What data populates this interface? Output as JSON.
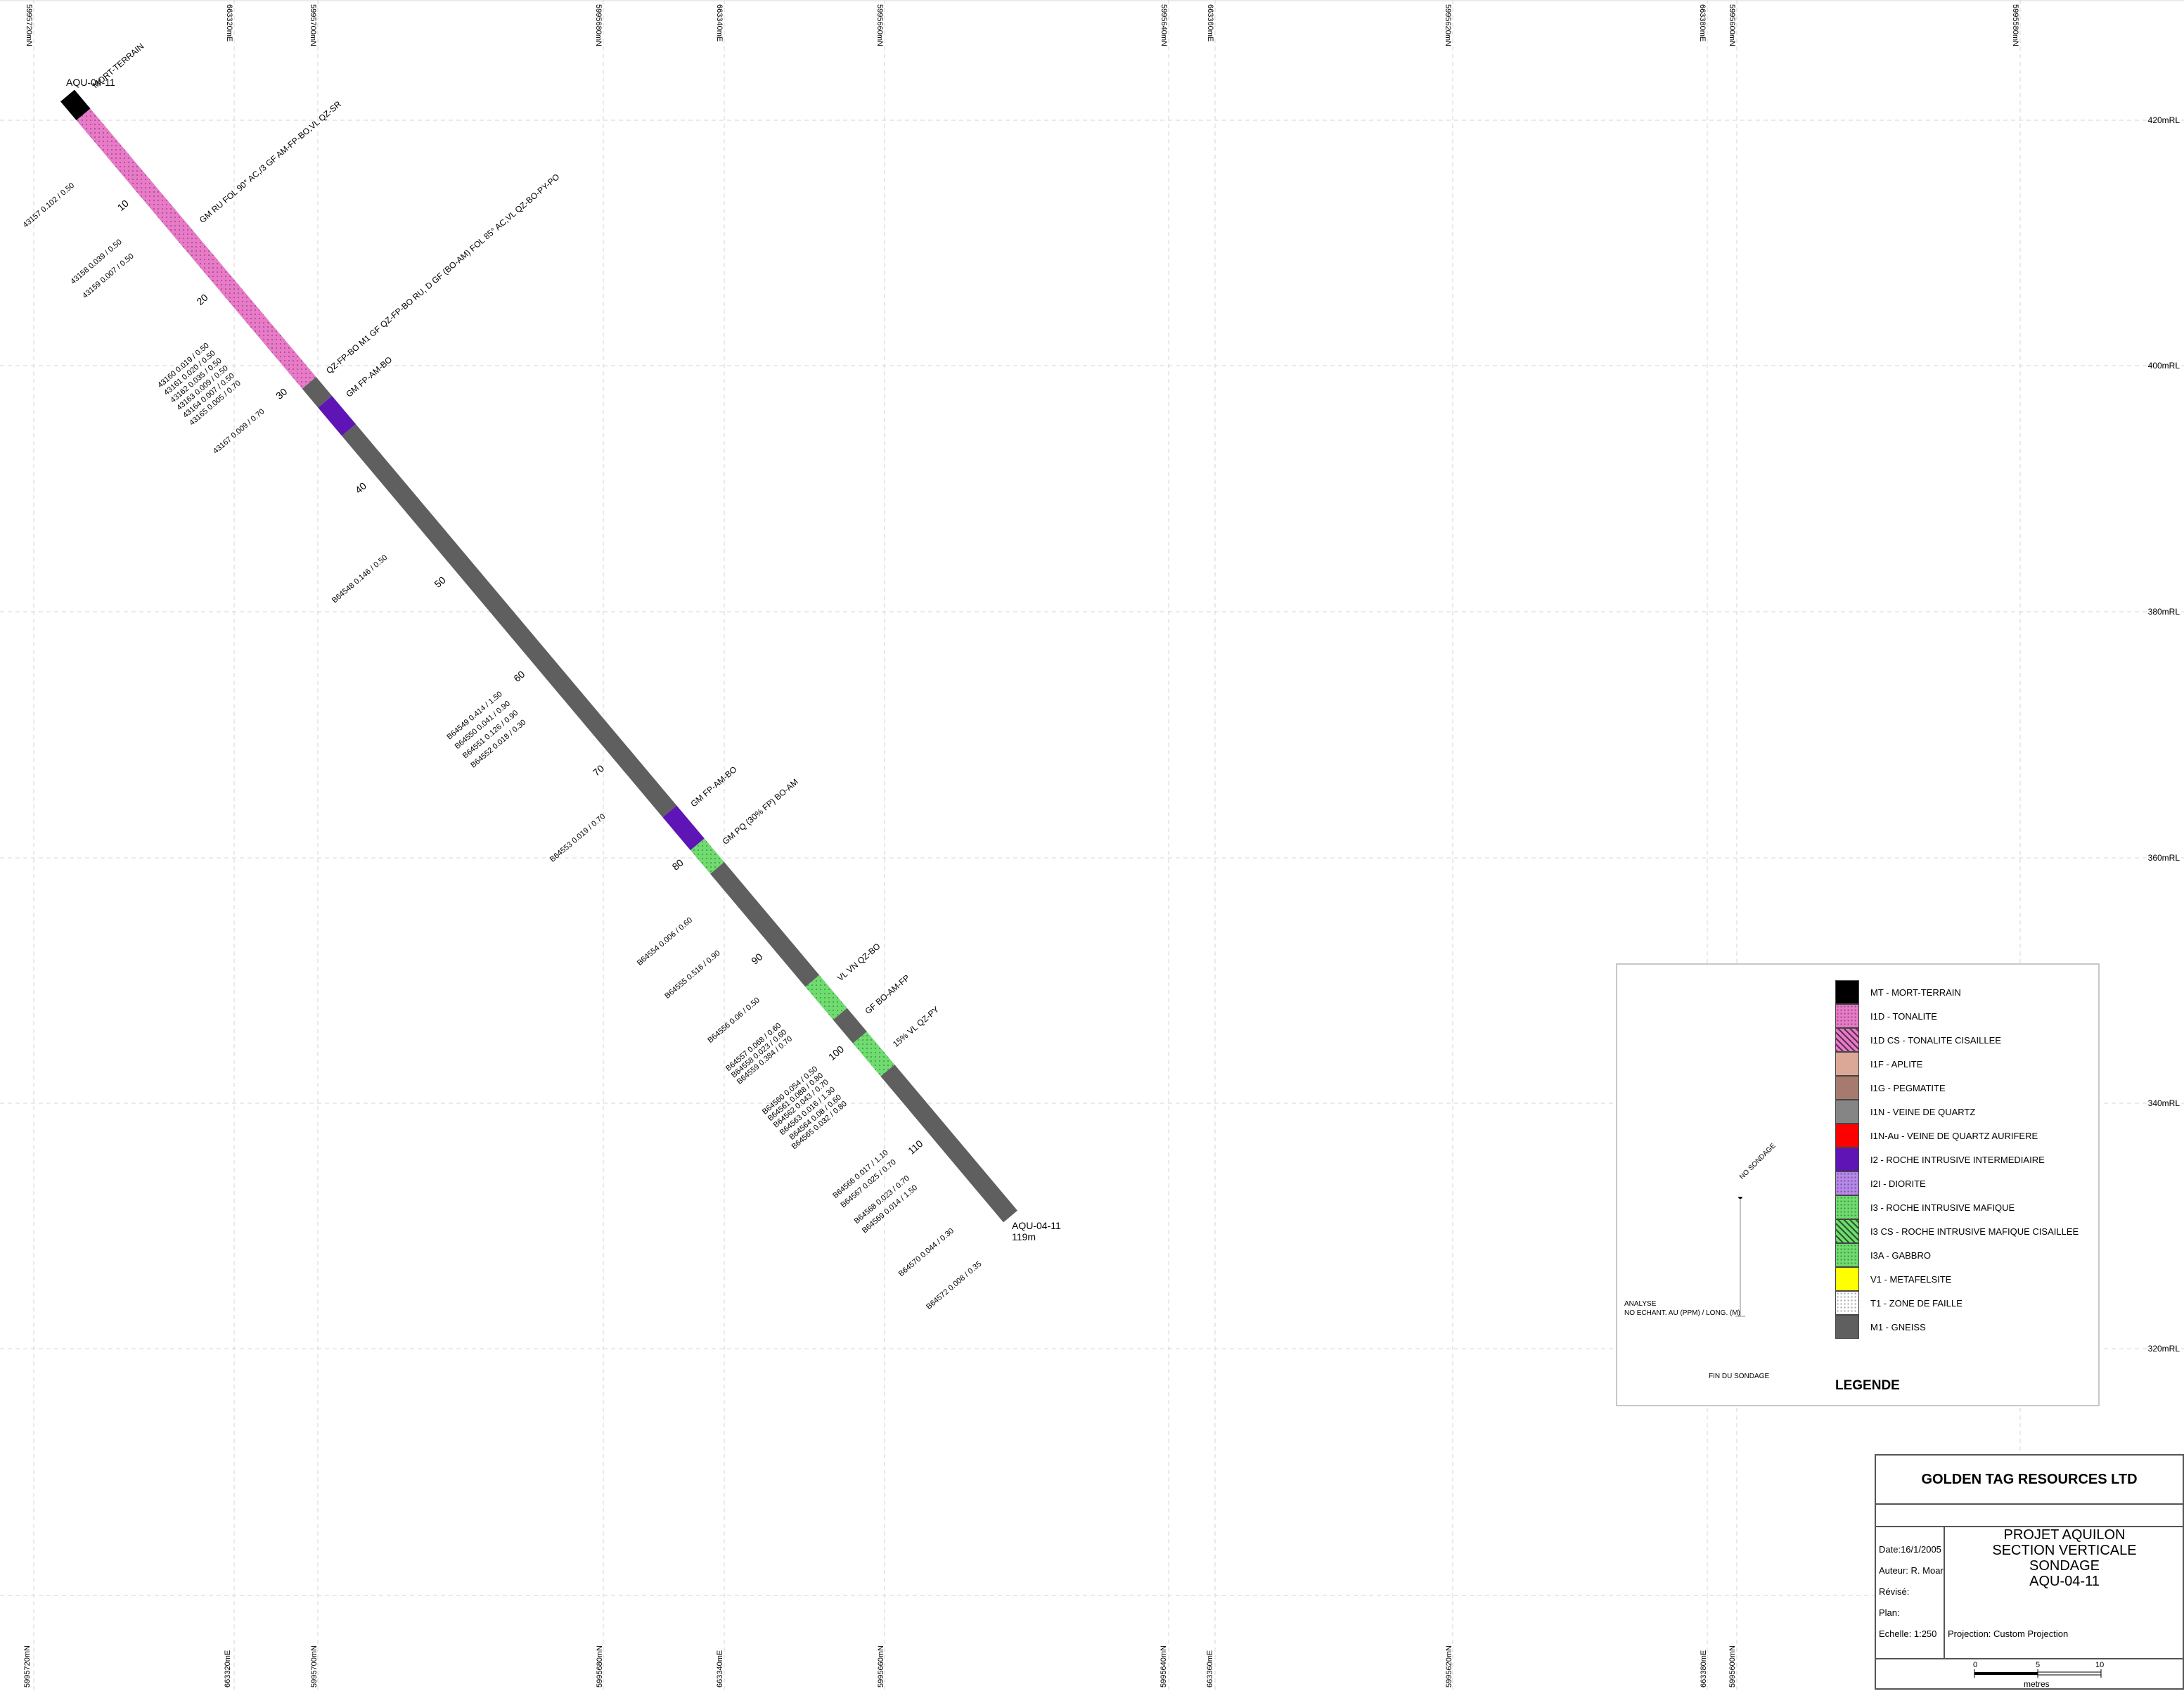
{
  "grid": {
    "top_labels": [
      "5995720mN",
      "663320mE",
      "5995700mN",
      "5995680mN",
      "663340mE",
      "5995660mN",
      "5995640mN",
      "663360mE",
      "5995620mN",
      "663380mE",
      "5995600mN",
      "5995580mN"
    ],
    "bottom_labels": [
      "5995720mN",
      "663320mE",
      "5995700mN",
      "5995680mN",
      "663340mE",
      "5995660mN",
      "5995640mN",
      "663360mE",
      "5995620mN",
      "663380mE",
      "5995600mN"
    ],
    "elevation_labels": [
      "420mRL",
      "400mRL",
      "380mRL",
      "360mRL",
      "340mRL",
      "320mRL"
    ]
  },
  "hole": {
    "name": "AQU-04-11",
    "end_name": "AQU-04-11",
    "end_depth": "119m",
    "collar_label": "MORT-TERRAIN",
    "depth_ticks": [
      "10",
      "20",
      "30",
      "40",
      "50",
      "60",
      "70",
      "80",
      "90",
      "100",
      "110"
    ],
    "segments": [
      {
        "from": 0,
        "to": 2,
        "unit": "MT"
      },
      {
        "from": 2,
        "to": 30.5,
        "unit": "I1D"
      },
      {
        "from": 30.5,
        "to": 32.5,
        "unit": "M1"
      },
      {
        "from": 32.5,
        "to": 35.5,
        "unit": "I2"
      },
      {
        "from": 35.5,
        "to": 76,
        "unit": "M1"
      },
      {
        "from": 76,
        "to": 79.5,
        "unit": "I2"
      },
      {
        "from": 79.5,
        "to": 82,
        "unit": "I3"
      },
      {
        "from": 82,
        "to": 94,
        "unit": "M1"
      },
      {
        "from": 94,
        "to": 97.5,
        "unit": "I3"
      },
      {
        "from": 97.5,
        "to": 100,
        "unit": "M1"
      },
      {
        "from": 100,
        "to": 103.5,
        "unit": "I3"
      },
      {
        "from": 103.5,
        "to": 119,
        "unit": "M1"
      }
    ],
    "descriptions": [
      {
        "depth": 15,
        "text": "GM RU FOL 90° AC,/3 GF AM-FP-BO,VL QZ-SR"
      },
      {
        "depth": 31,
        "text": "QZ-FP-BO M1 GF QZ-FP-BO RU, D GF (BO-AM) FOL 85° AC,VL QZ-BO-PY-PO"
      },
      {
        "depth": 33.5,
        "text": "GM FP-AM-BO"
      },
      {
        "depth": 77,
        "text": "GM FP-AM-BO"
      },
      {
        "depth": 81,
        "text": "GM PQ (30% FP) BO-AM"
      },
      {
        "depth": 95.5,
        "text": "VL VN QZ-BO"
      },
      {
        "depth": 99,
        "text": "GF BO-AM-FP"
      },
      {
        "depth": 102.5,
        "text": "15% VL QZ-PY"
      }
    ],
    "assays": [
      {
        "depth": 6,
        "text": "43157  0.102 / 0.50"
      },
      {
        "depth": 12,
        "text": "43158  0.039 / 0.50"
      },
      {
        "depth": 13.5,
        "text": "43159  0.007 / 0.50"
      },
      {
        "depth": 23,
        "text": "43160  0.019 / 0.50"
      },
      {
        "depth": 23.8,
        "text": "43161  0.020 / 0.50"
      },
      {
        "depth": 24.6,
        "text": "43162  0.035 / 0.50"
      },
      {
        "depth": 25.4,
        "text": "43163  0.009 / 0.50"
      },
      {
        "depth": 26.2,
        "text": "43164  0.007 / 0.50"
      },
      {
        "depth": 27,
        "text": "43165  0.005 / 0.70"
      },
      {
        "depth": 30,
        "text": "43167  0.009 / 0.70"
      },
      {
        "depth": 45.5,
        "text": "B64548  0.146 / 0.50"
      },
      {
        "depth": 60,
        "text": "B64549  0.414 / 1.50"
      },
      {
        "depth": 61,
        "text": "B64550  0.041 / 0.90"
      },
      {
        "depth": 62,
        "text": "B64551  0.126 / 0.90"
      },
      {
        "depth": 63,
        "text": "B64552  0.018 / 0.30"
      },
      {
        "depth": 73,
        "text": "B64553  0.019 / 0.70"
      },
      {
        "depth": 84,
        "text": "B64554  0.006 / 0.60"
      },
      {
        "depth": 87.5,
        "text": "B64555  0.516 / 0.90"
      },
      {
        "depth": 92.5,
        "text": "B64556  0.06 / 0.50"
      },
      {
        "depth": 95.2,
        "text": "B64557  0.068 / 0.60"
      },
      {
        "depth": 95.9,
        "text": "B64558  0.023 / 0.60"
      },
      {
        "depth": 96.6,
        "text": "B64559  0.384 / 0.70"
      },
      {
        "depth": 99.8,
        "text": "B64560  0.054 / 0.50"
      },
      {
        "depth": 100.5,
        "text": "B64561  0.088 / 0.80"
      },
      {
        "depth": 101.2,
        "text": "B64562  0.043 / 0.70"
      },
      {
        "depth": 102,
        "text": "B64563  0.016 / 1.30"
      },
      {
        "depth": 102.8,
        "text": "B64564  0.08 / 0.60"
      },
      {
        "depth": 103.5,
        "text": "B64565  0.032 / 0.80"
      },
      {
        "depth": 108.7,
        "text": "B64566  0.017 / 1.10"
      },
      {
        "depth": 109.7,
        "text": "B64567  0.025 / 0.70"
      },
      {
        "depth": 111.4,
        "text": "B64568  0.023 / 0.70"
      },
      {
        "depth": 112.4,
        "text": "B64569  0.014 / 1.50"
      },
      {
        "depth": 117,
        "text": "B64570  0.044 / 0.30"
      },
      {
        "depth": 120.5,
        "text": "B64572  0.008 / 0.35"
      }
    ]
  },
  "legend": {
    "title": "LEGENDE",
    "items": [
      {
        "code": "MT",
        "label": "MT - MORT-TERRAIN",
        "color": "#000000",
        "pattern": "solid"
      },
      {
        "code": "I1D",
        "label": "I1D - TONALITE",
        "color": "#e87ac8",
        "pattern": "dots"
      },
      {
        "code": "I1DCS",
        "label": "I1D CS - TONALITE CISAILLEE",
        "color": "#e87ac8",
        "pattern": "hatch"
      },
      {
        "code": "I1F",
        "label": "I1F - APLITE",
        "color": "#dba898",
        "pattern": "solid"
      },
      {
        "code": "I1G",
        "label": "I1G - PEGMATITE",
        "color": "#a67a6e",
        "pattern": "solid"
      },
      {
        "code": "I1N",
        "label": "I1N - VEINE DE QUARTZ",
        "color": "#858585",
        "pattern": "solid"
      },
      {
        "code": "I1NAu",
        "label": "I1N-Au - VEINE DE QUARTZ AURIFERE",
        "color": "#ff0000",
        "pattern": "solid"
      },
      {
        "code": "I2",
        "label": "I2 - ROCHE INTRUSIVE INTERMEDIAIRE",
        "color": "#5f14b5",
        "pattern": "solid"
      },
      {
        "code": "I2I",
        "label": "I2I - DIORITE",
        "color": "#b688ea",
        "pattern": "dots"
      },
      {
        "code": "I3",
        "label": "I3 - ROCHE INTRUSIVE MAFIQUE",
        "color": "#6fdc6f",
        "pattern": "dots"
      },
      {
        "code": "I3CS",
        "label": "I3 CS - ROCHE INTRUSIVE MAFIQUE CISAILLEE",
        "color": "#6fdc6f",
        "pattern": "hatch"
      },
      {
        "code": "I3A",
        "label": "I3A - GABBRO",
        "color": "#6fdc6f",
        "pattern": "dots"
      },
      {
        "code": "V1",
        "label": "V1 - METAFELSITE",
        "color": "#ffff00",
        "pattern": "solid"
      },
      {
        "code": "T1",
        "label": "T1 - ZONE DE FAILLE",
        "color": "#ffffff",
        "pattern": "dots"
      },
      {
        "code": "M1",
        "label": "M1 - GNEISS",
        "color": "#5f5f5f",
        "pattern": "solid"
      }
    ],
    "key": {
      "analyse_line1": "ANALYSE",
      "analyse_line2": "NO ECHANT. AU (PPM) / LONG. (M)",
      "no_sondage": "NO SONDAGE",
      "fin_du_sondage": "FIN DU SONDAGE"
    }
  },
  "title_block": {
    "company": "GOLDEN TAG RESOURCES LTD",
    "project_lines": [
      "PROJET AQUILON",
      "SECTION VERTICALE",
      "SONDAGE",
      "AQU-04-11"
    ],
    "date": "Date:16/1/2005",
    "author": "Auteur: R. Moar",
    "revised": "Révisé:",
    "plan": "Plan:",
    "scale": "Echelle: 1:250",
    "projection": "Projection: Custom Projection",
    "scalebar": {
      "ticks": [
        "0",
        "5",
        "10"
      ],
      "unit": "metres"
    }
  }
}
